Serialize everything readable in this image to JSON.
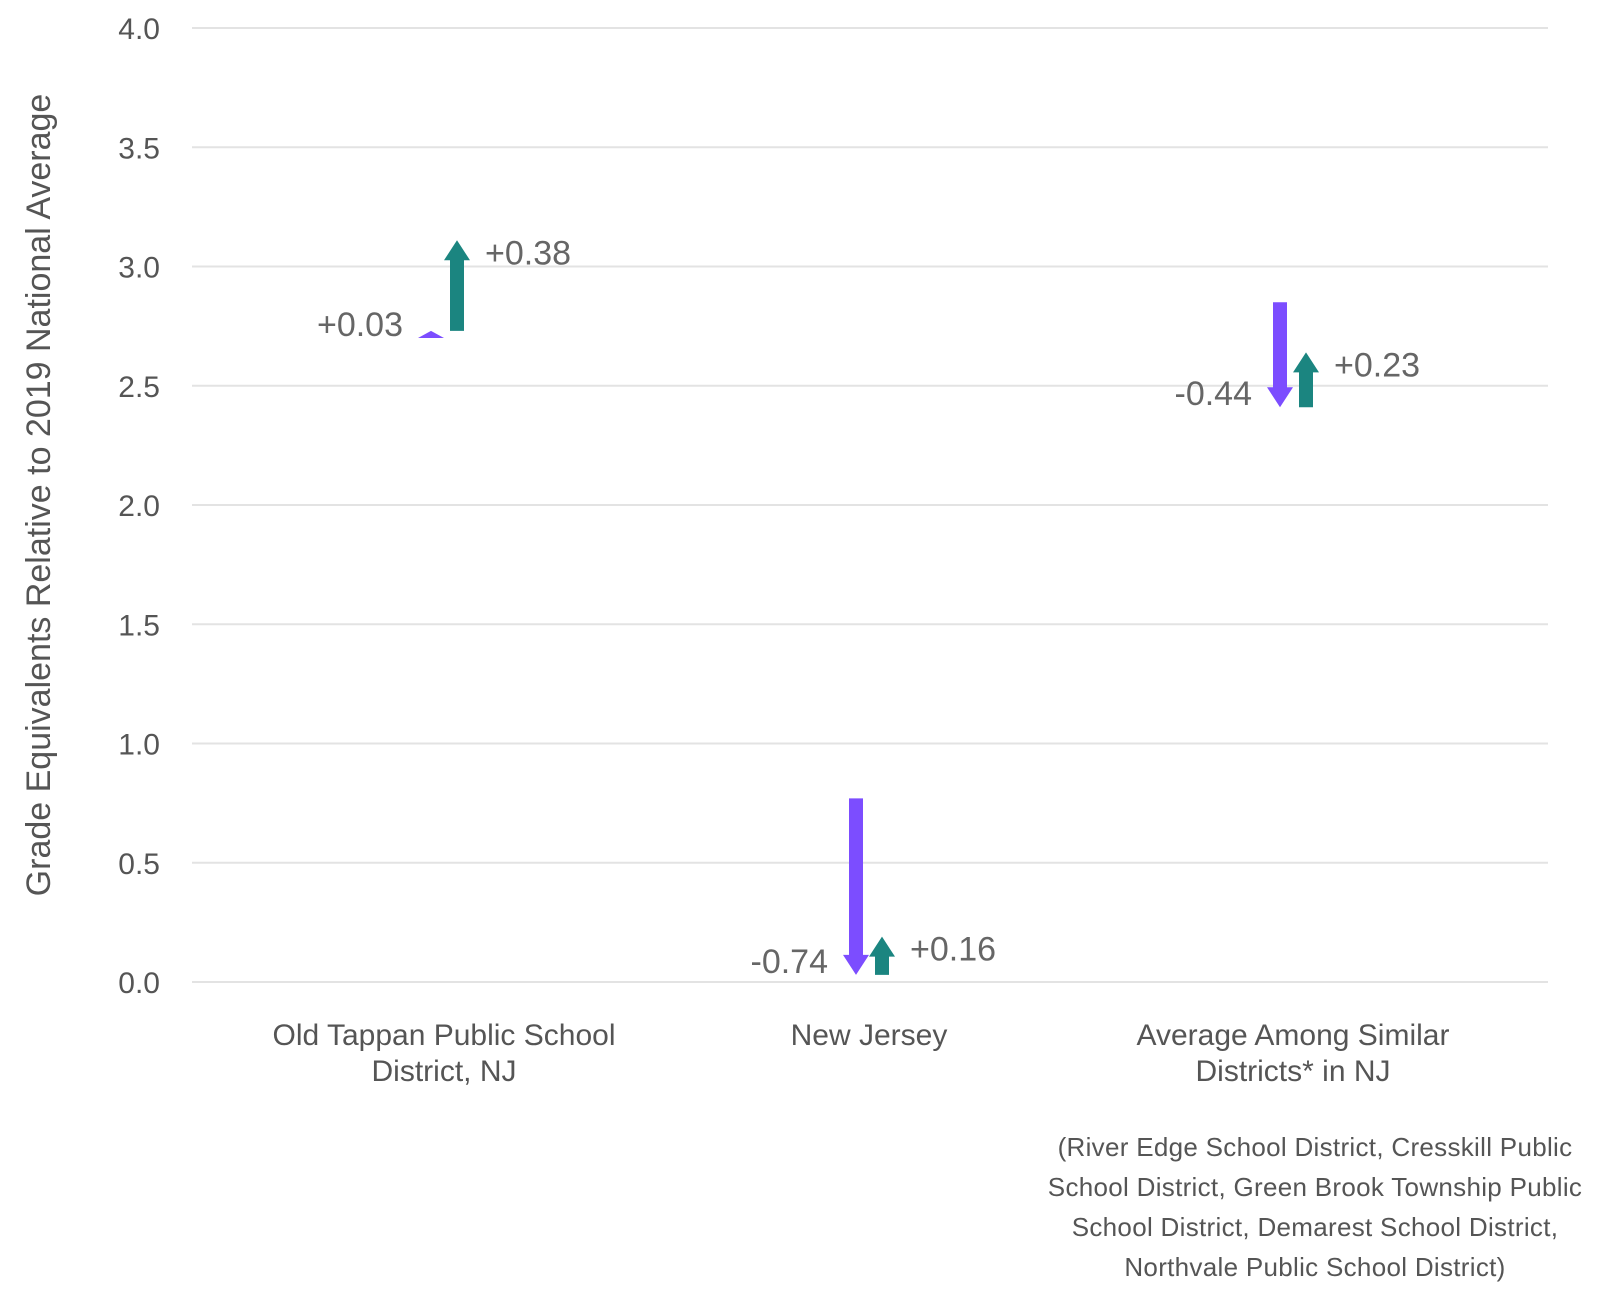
{
  "chart_data": {
    "type": "arrow",
    "ylabel": "Grade Equivalents Relative to 2019 National Average",
    "ylim": [
      0,
      4
    ],
    "yticks": [
      "0.0",
      "0.5",
      "1.0",
      "1.5",
      "2.0",
      "2.5",
      "3.0",
      "3.5",
      "4.0"
    ],
    "grid": true,
    "categories": [
      [
        "Old Tappan Public School",
        "District, NJ"
      ],
      [
        "New Jersey"
      ],
      [
        "Average Among Similar",
        "Districts* in NJ"
      ]
    ],
    "series": [
      {
        "color": "#7c4dff",
        "changes": [
          {
            "start": 2.7,
            "end": 2.73,
            "label": "+0.03"
          },
          {
            "start": 0.77,
            "end": 0.03,
            "label": "-0.74"
          },
          {
            "start": 2.85,
            "end": 2.41,
            "label": "-0.44"
          }
        ]
      },
      {
        "color": "#1b8580",
        "changes": [
          {
            "start": 2.73,
            "end": 3.11,
            "label": "+0.38"
          },
          {
            "start": 0.03,
            "end": 0.19,
            "label": "+0.16"
          },
          {
            "start": 2.41,
            "end": 2.64,
            "label": "+0.23"
          }
        ]
      }
    ],
    "footnote": "(River Edge School District, Cresskill Public School District, Green Brook Township Public School District, Demarest School District, Northvale Public School District)"
  }
}
